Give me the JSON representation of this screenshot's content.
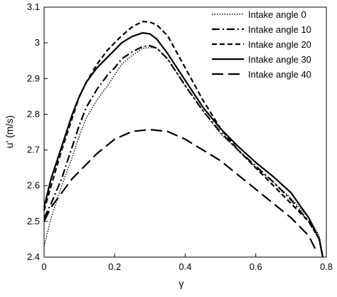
{
  "chart_data": {
    "type": "line",
    "title": "",
    "xlabel": "γ",
    "ylabel": "u' (m/s)",
    "xlim": [
      0,
      0.8
    ],
    "ylim": [
      2.4,
      3.1
    ],
    "xticks": [
      0,
      0.2,
      0.4,
      0.6,
      0.8
    ],
    "xtick_labels": [
      "0",
      "0.2",
      "0.4",
      "0.6",
      "0.8"
    ],
    "yticks": [
      2.4,
      2.5,
      2.6,
      2.7,
      2.8,
      2.9,
      3.0,
      3.1
    ],
    "ytick_labels": [
      "2.4",
      "2.5",
      "2.6",
      "2.7",
      "2.8",
      "2.9",
      "3",
      "3.1"
    ],
    "grid": false,
    "legend_position": "top-right",
    "series": [
      {
        "name": "Intake angle 0",
        "dash": "dotted",
        "x": [
          0,
          0.02,
          0.05,
          0.08,
          0.1,
          0.12,
          0.15,
          0.18,
          0.2,
          0.22,
          0.25,
          0.28,
          0.3,
          0.32,
          0.35,
          0.4,
          0.45,
          0.5,
          0.55,
          0.6,
          0.65,
          0.7,
          0.75,
          0.78,
          0.79
        ],
        "y": [
          2.43,
          2.51,
          2.6,
          2.68,
          2.74,
          2.79,
          2.84,
          2.88,
          2.91,
          2.94,
          2.965,
          2.985,
          2.987,
          2.985,
          2.955,
          2.88,
          2.81,
          2.745,
          2.7,
          2.65,
          2.61,
          2.565,
          2.51,
          2.46,
          2.4
        ]
      },
      {
        "name": "Intake angle 10",
        "dash": "dash-dot",
        "x": [
          0,
          0.02,
          0.05,
          0.08,
          0.1,
          0.12,
          0.15,
          0.18,
          0.2,
          0.22,
          0.25,
          0.28,
          0.3,
          0.32,
          0.35,
          0.4,
          0.45,
          0.5,
          0.55,
          0.6,
          0.65,
          0.7,
          0.75,
          0.78,
          0.79
        ],
        "y": [
          2.51,
          2.55,
          2.62,
          2.71,
          2.77,
          2.82,
          2.87,
          2.91,
          2.93,
          2.955,
          2.975,
          2.99,
          2.992,
          2.985,
          2.955,
          2.88,
          2.81,
          2.75,
          2.7,
          2.655,
          2.61,
          2.56,
          2.5,
          2.45,
          2.4
        ]
      },
      {
        "name": "Intake angle 20",
        "dash": "dashed",
        "x": [
          0,
          0.02,
          0.05,
          0.08,
          0.1,
          0.12,
          0.15,
          0.18,
          0.2,
          0.22,
          0.25,
          0.28,
          0.3,
          0.32,
          0.35,
          0.4,
          0.45,
          0.5,
          0.55,
          0.6,
          0.65,
          0.7,
          0.75,
          0.78,
          0.79
        ],
        "y": [
          2.53,
          2.6,
          2.7,
          2.79,
          2.85,
          2.89,
          2.94,
          2.98,
          3.0,
          3.02,
          3.045,
          3.06,
          3.058,
          3.05,
          3.02,
          2.93,
          2.84,
          2.76,
          2.7,
          2.65,
          2.6,
          2.55,
          2.5,
          2.45,
          2.4
        ]
      },
      {
        "name": "Intake angle 30",
        "dash": "solid",
        "x": [
          0,
          0.02,
          0.05,
          0.08,
          0.1,
          0.12,
          0.15,
          0.18,
          0.2,
          0.22,
          0.25,
          0.28,
          0.3,
          0.32,
          0.35,
          0.4,
          0.45,
          0.5,
          0.55,
          0.6,
          0.65,
          0.7,
          0.75,
          0.78,
          0.79
        ],
        "y": [
          2.54,
          2.62,
          2.71,
          2.8,
          2.85,
          2.89,
          2.93,
          2.96,
          2.98,
          3.0,
          3.018,
          3.028,
          3.025,
          3.01,
          2.97,
          2.895,
          2.82,
          2.76,
          2.71,
          2.665,
          2.625,
          2.58,
          2.51,
          2.45,
          2.4
        ]
      },
      {
        "name": "Intake angle 40",
        "dash": "long-dash",
        "x": [
          0,
          0.02,
          0.05,
          0.08,
          0.1,
          0.15,
          0.2,
          0.25,
          0.3,
          0.35,
          0.4,
          0.45,
          0.5,
          0.55,
          0.6,
          0.65,
          0.7,
          0.75,
          0.77
        ],
        "y": [
          2.5,
          2.54,
          2.58,
          2.62,
          2.64,
          2.69,
          2.73,
          2.752,
          2.757,
          2.752,
          2.73,
          2.7,
          2.67,
          2.63,
          2.59,
          2.55,
          2.51,
          2.46,
          2.42
        ]
      }
    ]
  }
}
